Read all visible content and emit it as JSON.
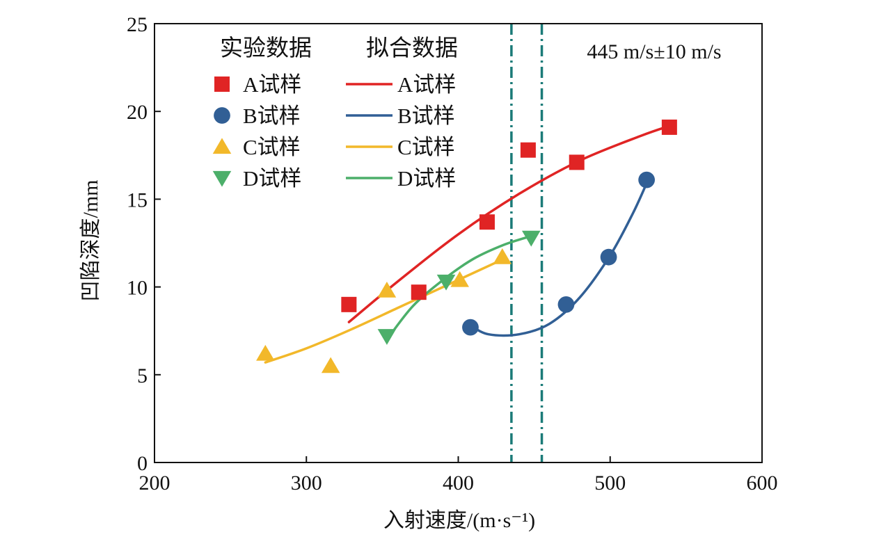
{
  "chart_data": {
    "type": "scatter",
    "xlabel": "入射速度/(m·s⁻¹)",
    "ylabel": "凹陷深度/mm",
    "xlim": [
      200,
      600
    ],
    "ylim": [
      0,
      25
    ],
    "xticks": [
      200,
      300,
      400,
      500,
      600
    ],
    "yticks": [
      0,
      5,
      10,
      15,
      20,
      25
    ],
    "grid": false,
    "legend_position": "top-left",
    "legend_headers": {
      "experimental": "实验数据",
      "fitted": "拟合数据"
    },
    "annotation": "445 m/s±10 m/s",
    "reference_lines": {
      "x": [
        435,
        455
      ],
      "style": "dash-dot",
      "color": "#1b7b78"
    },
    "series": [
      {
        "name": "A试样",
        "color": "#e02424",
        "marker": "square",
        "points": {
          "x": [
            328,
            374,
            419,
            446,
            478,
            539
          ],
          "y": [
            9.0,
            9.7,
            13.7,
            17.8,
            17.1,
            19.1
          ]
        },
        "fit": {
          "x": [
            328,
            360,
            400,
            440,
            480,
            520,
            540
          ],
          "y": [
            8.0,
            10.3,
            13.0,
            15.3,
            17.2,
            18.6,
            19.2
          ]
        }
      },
      {
        "name": "B试样",
        "color": "#315f95",
        "marker": "circle",
        "points": {
          "x": [
            408,
            471,
            499,
            524
          ],
          "y": [
            7.7,
            9.0,
            11.7,
            16.1
          ]
        },
        "fit": {
          "x": [
            408,
            420,
            440,
            460,
            480,
            500,
            515,
            525
          ],
          "y": [
            7.8,
            7.3,
            7.3,
            7.9,
            9.4,
            11.8,
            14.2,
            16.1
          ]
        }
      },
      {
        "name": "C试样",
        "color": "#f2b82a",
        "marker": "triangle-up",
        "points": {
          "x": [
            273,
            316,
            353,
            401,
            429
          ],
          "y": [
            6.2,
            5.5,
            9.8,
            10.4,
            11.7
          ]
        },
        "fit": {
          "x": [
            273,
            300,
            330,
            360,
            390,
            415,
            430
          ],
          "y": [
            5.7,
            6.5,
            7.6,
            8.8,
            10.0,
            11.0,
            11.6
          ]
        }
      },
      {
        "name": "D试样",
        "color": "#4caf6a",
        "marker": "triangle-down",
        "points": {
          "x": [
            353,
            392,
            448
          ],
          "y": [
            7.2,
            10.3,
            12.8
          ]
        },
        "fit": {
          "x": [
            353,
            370,
            390,
            410,
            430,
            448
          ],
          "y": [
            7.0,
            8.9,
            10.4,
            11.6,
            12.4,
            12.9
          ]
        }
      }
    ]
  }
}
